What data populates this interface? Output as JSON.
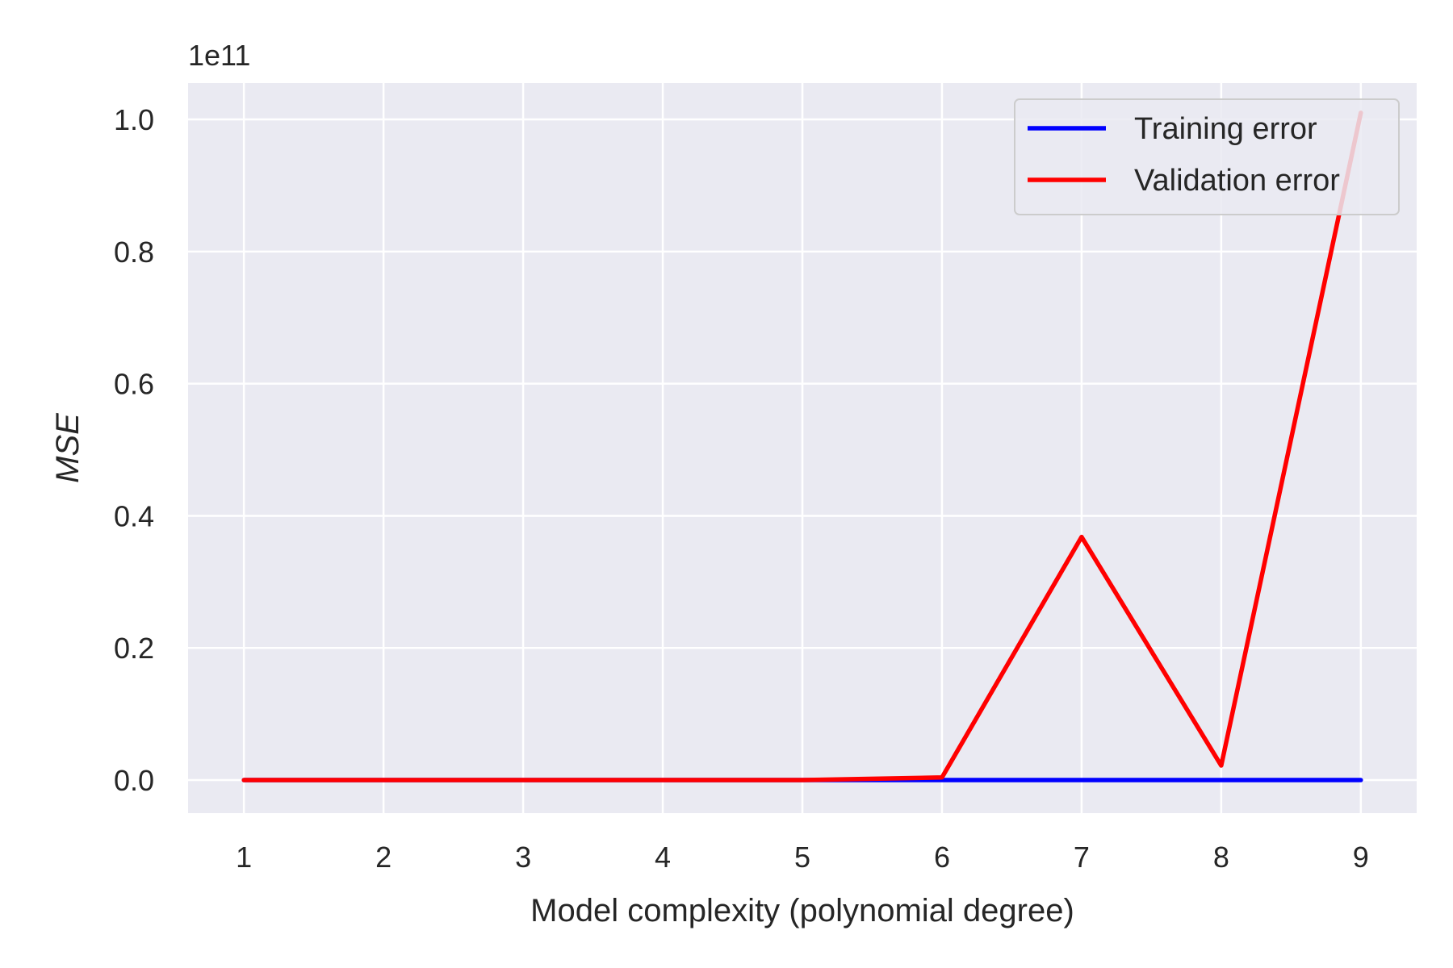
{
  "chart_data": {
    "type": "line",
    "title": "",
    "xlabel": "Model complexity (polynomial degree)",
    "ylabel": "MSE",
    "y_offset_label": "1e11",
    "x": [
      1,
      2,
      3,
      4,
      5,
      6,
      7,
      8,
      9
    ],
    "x_ticks": [
      "1",
      "2",
      "3",
      "4",
      "5",
      "6",
      "7",
      "8",
      "9"
    ],
    "y_ticks": [
      "0.0",
      "0.2",
      "0.4",
      "0.6",
      "0.8",
      "1.0"
    ],
    "y_tick_values": [
      0.0,
      0.2,
      0.4,
      0.6,
      0.8,
      1.0
    ],
    "xlim": [
      0.6,
      9.4
    ],
    "ylim": [
      -0.05,
      1.055
    ],
    "grid": true,
    "legend_position": "top-right",
    "series": [
      {
        "name": "Training error",
        "color": "#0000ff",
        "values": [
          0,
          0,
          0,
          0,
          0,
          0,
          0,
          0,
          0
        ]
      },
      {
        "name": "Validation error",
        "color": "#ff0000",
        "values": [
          0.0,
          0.0,
          0.0,
          0.0,
          0.0,
          0.004,
          0.368,
          0.022,
          1.01
        ]
      }
    ]
  }
}
